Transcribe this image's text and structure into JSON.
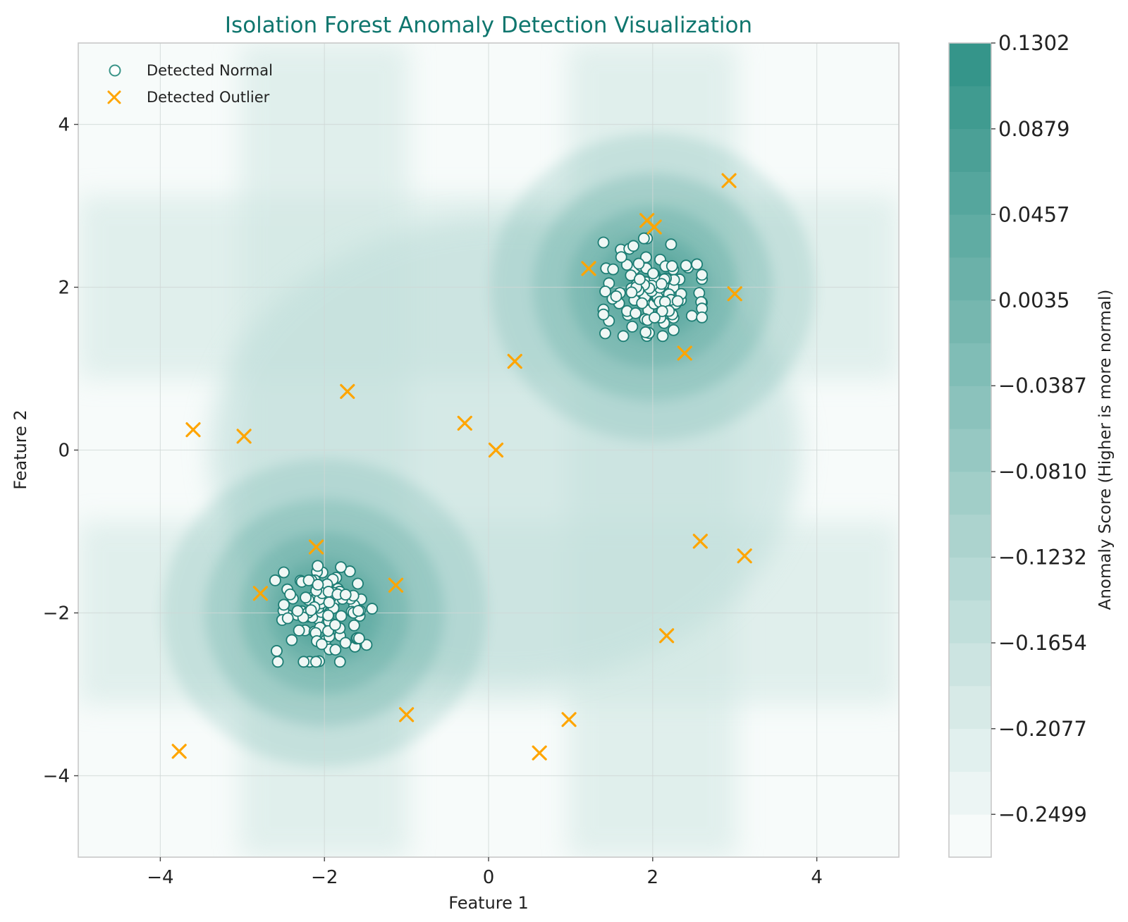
{
  "chart_data": {
    "type": "scatter",
    "title": "Isolation Forest Anomaly Detection Visualization",
    "xlabel": "Feature 1",
    "ylabel": "Feature 2",
    "xlim": [
      -5,
      5
    ],
    "ylim": [
      -5,
      5
    ],
    "xticks": [
      -4,
      -2,
      0,
      2,
      4
    ],
    "yticks": [
      -4,
      -2,
      0,
      2,
      4
    ],
    "xtick_labels": [
      "−4",
      "−2",
      "0",
      "2",
      "4"
    ],
    "ytick_labels": [
      "−4",
      "−2",
      "0",
      "2",
      "4"
    ],
    "grid": true,
    "legend": {
      "placement": "top-left",
      "entries": [
        {
          "label": "Detected Normal",
          "marker": "circle"
        },
        {
          "label": "Detected Outlier",
          "marker": "x"
        }
      ]
    },
    "colorbar": {
      "label": "Anomaly Score (Higher is more normal)",
      "min": -0.271,
      "max": 0.1302,
      "ticks": [
        0.1302,
        0.0879,
        0.0457,
        0.0035,
        -0.0387,
        -0.081,
        -0.1232,
        -0.1654,
        -0.2077,
        -0.2499
      ],
      "tick_labels": [
        "0.1302",
        "0.0879",
        "0.0457",
        "0.0035",
        "−0.0387",
        "−0.0810",
        "−0.1232",
        "−0.1654",
        "−0.2077",
        "−0.2499"
      ],
      "levels": 19
    },
    "series": [
      {
        "name": "Detected Normal",
        "clusters": [
          {
            "center": [
              2.0,
              2.0
            ],
            "spread": 0.3,
            "count": 120
          },
          {
            "center": [
              -2.0,
              -2.0
            ],
            "spread": 0.3,
            "count": 110
          }
        ]
      },
      {
        "name": "Detected Outlier",
        "points": [
          [
            -3.6,
            0.25
          ],
          [
            -2.98,
            0.17
          ],
          [
            -1.72,
            0.72
          ],
          [
            -0.29,
            0.33
          ],
          [
            0.09,
            0.0
          ],
          [
            0.32,
            1.09
          ],
          [
            1.22,
            2.23
          ],
          [
            1.93,
            2.82
          ],
          [
            2.02,
            2.74
          ],
          [
            2.93,
            3.31
          ],
          [
            3.0,
            1.92
          ],
          [
            2.39,
            1.19
          ],
          [
            2.58,
            -1.12
          ],
          [
            3.12,
            -1.3
          ],
          [
            2.17,
            -2.28
          ],
          [
            -2.1,
            -1.19
          ],
          [
            -2.78,
            -1.76
          ],
          [
            -1.13,
            -1.66
          ],
          [
            -1.0,
            -3.25
          ],
          [
            0.98,
            -3.31
          ],
          [
            0.62,
            -3.72
          ],
          [
            -3.77,
            -3.7
          ]
        ]
      }
    ],
    "colors": {
      "title": "#0f766e",
      "normal_fill": "#f0f7f5",
      "normal_edge": "#1d7d74",
      "outlier": "#ffa500",
      "colormap_low": "#f7fbfa",
      "colormap_high": "#35958a"
    }
  }
}
